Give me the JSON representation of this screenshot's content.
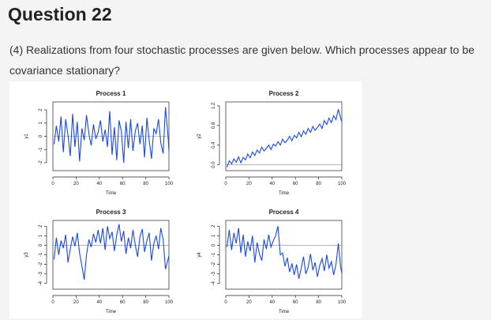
{
  "question": {
    "title": "Question 22",
    "prompt": "(4) Realizations from four stochastic processes are given below. Which processes appear to be covariance stationary?"
  },
  "colors": {
    "series": "#1947e6",
    "background": "#f4f4f4",
    "panel": "#ffffff"
  },
  "chart_data": [
    {
      "type": "line",
      "title": "Process 1",
      "xlabel": "Time",
      "ylabel": "y1",
      "xlim": [
        0,
        100
      ],
      "ylim": [
        -2.6,
        2.6
      ],
      "xticks": [
        "0",
        "20",
        "40",
        "60",
        "80",
        "100"
      ],
      "yticks": [
        "-2",
        "-1",
        "0",
        "1",
        "2"
      ],
      "ytick_values": [
        -2,
        -1,
        0,
        1,
        2
      ],
      "refline": 0,
      "x": [
        1,
        3,
        5,
        7,
        9,
        11,
        13,
        15,
        17,
        19,
        21,
        23,
        25,
        27,
        29,
        31,
        33,
        35,
        37,
        39,
        41,
        43,
        45,
        47,
        49,
        51,
        53,
        55,
        57,
        59,
        61,
        63,
        65,
        67,
        69,
        71,
        73,
        75,
        77,
        79,
        81,
        83,
        85,
        87,
        89,
        91,
        93,
        95,
        97,
        99,
        100
      ],
      "values": [
        -0.6,
        0.8,
        -0.4,
        1.5,
        -1.2,
        1.3,
        0.1,
        -1.5,
        1.7,
        -0.8,
        1.1,
        -1.9,
        0.6,
        -0.3,
        1.6,
        0.2,
        -0.7,
        0.9,
        -0.2,
        0.3,
        1.2,
        -0.4,
        0.5,
        -0.8,
        1.9,
        -1.4,
        0.7,
        -1.8,
        1.2,
        0.4,
        -2.0,
        1.1,
        -0.9,
        1.3,
        -1.1,
        0.4,
        1.0,
        -0.6,
        0.8,
        -1.6,
        1.4,
        -0.3,
        -1.7,
        0.6,
        0.2,
        1.3,
        -0.5,
        -1.3,
        2.2,
        0.3,
        -1.1
      ]
    },
    {
      "type": "line",
      "title": "Process 2",
      "xlabel": "Time",
      "ylabel": "y2",
      "xlim": [
        0,
        100
      ],
      "ylim": [
        -0.12,
        1.28
      ],
      "xticks": [
        "0",
        "20",
        "40",
        "60",
        "80",
        "100"
      ],
      "yticks": [
        "0.0",
        "0.4",
        "0.8",
        "1.2"
      ],
      "ytick_values": [
        0,
        0.4,
        0.8,
        1.2
      ],
      "refline": 0,
      "x": [
        1,
        3,
        5,
        7,
        9,
        11,
        13,
        15,
        17,
        19,
        21,
        23,
        25,
        27,
        29,
        31,
        33,
        35,
        37,
        39,
        41,
        43,
        45,
        47,
        49,
        51,
        53,
        55,
        57,
        59,
        61,
        63,
        65,
        67,
        69,
        71,
        73,
        75,
        77,
        79,
        81,
        83,
        85,
        87,
        89,
        91,
        93,
        95,
        97,
        99,
        100
      ],
      "values": [
        -0.05,
        0.08,
        0.02,
        0.12,
        0.05,
        0.16,
        0.04,
        0.15,
        0.1,
        0.22,
        0.14,
        0.26,
        0.19,
        0.3,
        0.24,
        0.36,
        0.28,
        0.33,
        0.4,
        0.31,
        0.42,
        0.38,
        0.47,
        0.4,
        0.52,
        0.45,
        0.5,
        0.58,
        0.49,
        0.6,
        0.55,
        0.66,
        0.57,
        0.69,
        0.62,
        0.74,
        0.66,
        0.78,
        0.7,
        0.76,
        0.83,
        0.74,
        0.9,
        0.82,
        0.95,
        0.86,
        1.0,
        0.92,
        1.13,
        0.95,
        0.88
      ]
    },
    {
      "type": "line",
      "title": "Process 3",
      "xlabel": "Time",
      "ylabel": "y3",
      "xlim": [
        0,
        100
      ],
      "ylim": [
        -4.6,
        2.6
      ],
      "xticks": [
        "0",
        "20",
        "40",
        "60",
        "80",
        "100"
      ],
      "yticks": [
        "-4",
        "-3",
        "-2",
        "-1",
        "0",
        "1",
        "2"
      ],
      "ytick_values": [
        -4,
        -3,
        -2,
        -1,
        0,
        1,
        2
      ],
      "refline": 0,
      "x": [
        1,
        3,
        5,
        7,
        9,
        11,
        13,
        15,
        17,
        19,
        21,
        23,
        25,
        27,
        29,
        31,
        33,
        35,
        37,
        39,
        41,
        43,
        45,
        47,
        49,
        51,
        53,
        55,
        57,
        59,
        61,
        63,
        65,
        67,
        69,
        71,
        73,
        75,
        77,
        79,
        81,
        83,
        85,
        87,
        89,
        91,
        93,
        95,
        97,
        99,
        100
      ],
      "values": [
        -1.5,
        0.8,
        -1.0,
        0.5,
        -0.3,
        1.1,
        -1.8,
        -0.4,
        0.9,
        -0.1,
        1.3,
        -0.8,
        -2.2,
        -3.6,
        -1.0,
        0.6,
        -0.2,
        1.2,
        0.3,
        1.6,
        0.2,
        1.8,
        -0.5,
        2.0,
        0.7,
        1.4,
        -0.6,
        1.1,
        2.2,
        0.4,
        1.5,
        -0.9,
        0.8,
        -0.3,
        1.6,
        0.0,
        -1.2,
        0.9,
        1.7,
        -0.7,
        0.5,
        1.3,
        -1.6,
        0.2,
        1.0,
        -0.4,
        1.8,
        0.6,
        -2.5,
        -1.6,
        -1.1
      ]
    },
    {
      "type": "line",
      "title": "Process 4",
      "xlabel": "Time",
      "ylabel": "y4",
      "xlim": [
        0,
        100
      ],
      "ylim": [
        -4.6,
        2.6
      ],
      "xticks": [
        "0",
        "20",
        "40",
        "60",
        "80",
        "100"
      ],
      "yticks": [
        "-4",
        "-3",
        "-2",
        "-1",
        "0",
        "1",
        "2"
      ],
      "ytick_values": [
        -4,
        -3,
        -2,
        -1,
        0,
        1,
        2
      ],
      "refline": 0,
      "x": [
        1,
        3,
        5,
        7,
        9,
        11,
        13,
        15,
        17,
        19,
        21,
        23,
        25,
        27,
        29,
        31,
        33,
        35,
        37,
        39,
        41,
        43,
        45,
        47,
        49,
        51,
        53,
        55,
        57,
        59,
        61,
        63,
        65,
        67,
        69,
        71,
        73,
        75,
        77,
        79,
        81,
        83,
        85,
        87,
        89,
        91,
        93,
        95,
        97,
        99,
        100
      ],
      "values": [
        -0.2,
        1.6,
        -0.5,
        1.3,
        0.2,
        1.8,
        -0.8,
        1.1,
        -1.2,
        0.4,
        -0.6,
        1.0,
        -1.8,
        0.3,
        -0.9,
        -1.6,
        0.6,
        -0.4,
        1.1,
        -0.2,
        0.5,
        1.0,
        2.0,
        -1.0,
        -0.8,
        -2.2,
        -1.3,
        -2.8,
        -1.9,
        -3.1,
        -2.0,
        -3.5,
        -2.4,
        -1.2,
        -3.0,
        -2.3,
        -0.9,
        -2.6,
        -1.8,
        -3.3,
        -2.1,
        -1.4,
        -2.7,
        -1.0,
        -2.4,
        -1.7,
        -3.1,
        -2.0,
        0.2,
        -2.3,
        -2.9
      ]
    }
  ]
}
